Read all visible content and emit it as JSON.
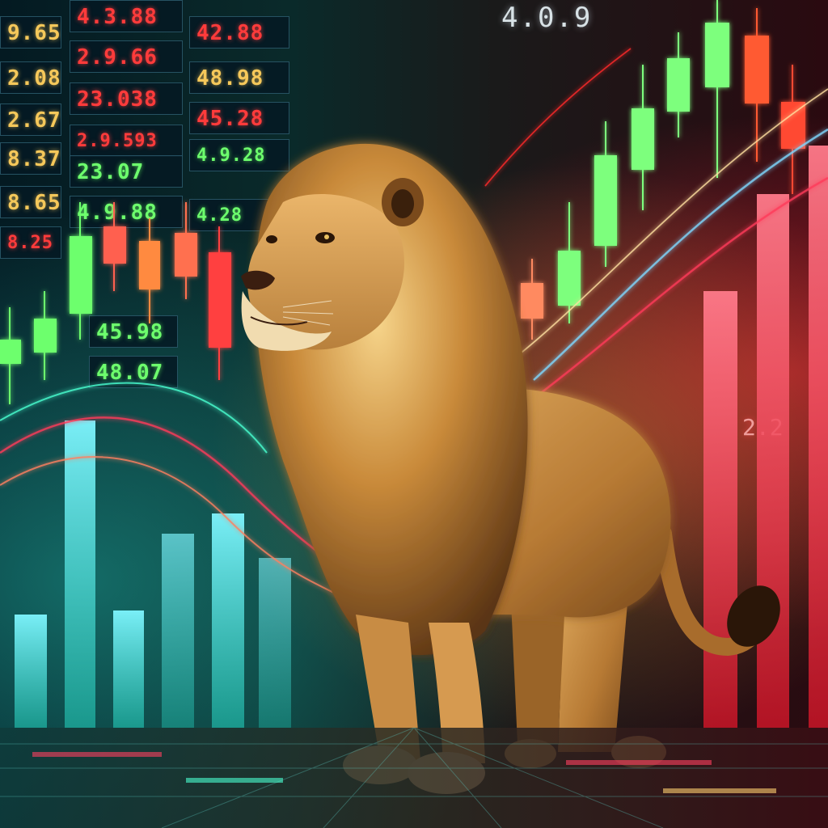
{
  "image": {
    "subject": "lion",
    "palette": {
      "bull": "#5cff6a",
      "bear": "#ff3b3b",
      "accent": "#f5c85a",
      "glow": "#ffb347"
    }
  },
  "ticker_board": {
    "column_1": [
      "9.65",
      "2.08",
      "2.67",
      "8.37",
      "8.65",
      "8.25"
    ],
    "column_2": [
      "4.3.88",
      "2.9.66",
      "23.038",
      "2.9.593",
      "23.07",
      "4.9.88"
    ],
    "column_3": [
      "42.88",
      "48.98",
      "45.28",
      "4.9.28",
      "4.28"
    ],
    "lower": [
      "45.98",
      "48.07"
    ]
  },
  "readouts": {
    "top": "4.0.9",
    "side": "2.2"
  }
}
